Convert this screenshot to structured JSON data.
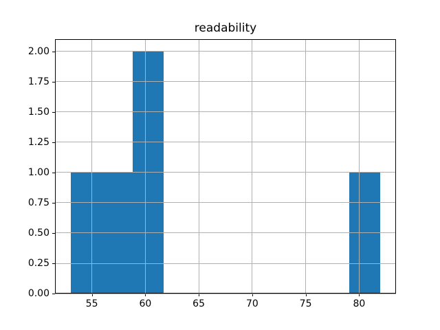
{
  "chart_data": {
    "type": "bar",
    "subtype": "histogram",
    "title": "readability",
    "xlabel": "",
    "ylabel": "",
    "bin_edges": [
      53.0,
      55.9,
      58.8,
      61.7,
      64.6,
      67.5,
      70.4,
      73.3,
      76.2,
      79.1,
      82.0
    ],
    "counts": [
      1,
      1,
      2,
      0,
      0,
      0,
      0,
      0,
      0,
      1
    ],
    "xlim": [
      51.55,
      83.45
    ],
    "ylim": [
      0,
      2.1
    ],
    "xticks": [
      55,
      60,
      65,
      70,
      75,
      80
    ],
    "xtick_labels": [
      "55",
      "60",
      "65",
      "70",
      "75",
      "80"
    ],
    "yticks": [
      0,
      0.25,
      0.5,
      0.75,
      1.0,
      1.25,
      1.5,
      1.75,
      2.0
    ],
    "ytick_labels": [
      "0.00",
      "0.25",
      "0.50",
      "0.75",
      "1.00",
      "1.25",
      "1.50",
      "1.75",
      "2.00"
    ],
    "grid": true,
    "grid_on_top_of_bars": true,
    "legend_position": "none",
    "colors": {
      "bar": "#1f77b4",
      "grid": "#b0b0b0",
      "spine": "#000000",
      "text": "#000000",
      "background": "#ffffff"
    }
  }
}
